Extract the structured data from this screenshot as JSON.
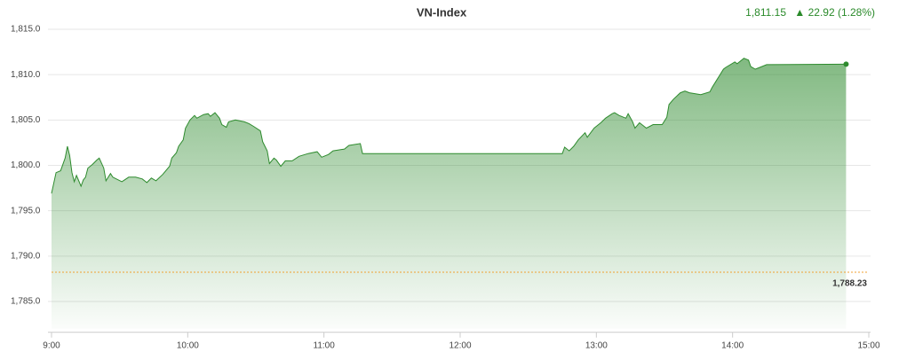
{
  "chart_data": {
    "type": "area",
    "title": "VN-Index",
    "last_value_label": "1,811.15",
    "change_label": "▲ 22.92 (1.28%)",
    "color": "#2e8b2e",
    "header_color": "#2a8a2a",
    "reference": {
      "value": 1788.23,
      "label": "1,788.23",
      "color": "#f0a030"
    },
    "grid": true,
    "xlim": [
      540,
      900
    ],
    "xticks": [
      {
        "value": 540,
        "label": "9:00"
      },
      {
        "value": 600,
        "label": "10:00"
      },
      {
        "value": 660,
        "label": "11:00"
      },
      {
        "value": 720,
        "label": "12:00"
      },
      {
        "value": 780,
        "label": "13:00"
      },
      {
        "value": 840,
        "label": "14:00"
      },
      {
        "value": 900,
        "label": "15:00"
      }
    ],
    "ylim": [
      1782,
      1815
    ],
    "yticks": [
      {
        "value": 1785,
        "label": "1,785.0"
      },
      {
        "value": 1790,
        "label": "1,790.0"
      },
      {
        "value": 1795,
        "label": "1,795.0"
      },
      {
        "value": 1800,
        "label": "1,800.0"
      },
      {
        "value": 1805,
        "label": "1,805.0"
      },
      {
        "value": 1810,
        "label": "1,810.0"
      },
      {
        "value": 1815,
        "label": "1,815.0"
      }
    ],
    "x": [
      540,
      542,
      544,
      546,
      547,
      548,
      549,
      550,
      551,
      553,
      554,
      555,
      556,
      558,
      560,
      561,
      563,
      564,
      566,
      567,
      571,
      574,
      577,
      580,
      582,
      584,
      586,
      589,
      592,
      593,
      595,
      596,
      598,
      599,
      601,
      603,
      604,
      607,
      609,
      610,
      612,
      614,
      615,
      617,
      618,
      621,
      625,
      627,
      629,
      632,
      633,
      635,
      636,
      638,
      639,
      641,
      643,
      646,
      649,
      653,
      657,
      659,
      662,
      664,
      669,
      671,
      676,
      677,
      765,
      766,
      768,
      770,
      772,
      775,
      776,
      779,
      782,
      784,
      787,
      788,
      790,
      793,
      794,
      796,
      797,
      799,
      802,
      805,
      809,
      811,
      812,
      814,
      817,
      819,
      821,
      826,
      830,
      831,
      833,
      834,
      836,
      837,
      841,
      842,
      845,
      847,
      848,
      850,
      852,
      855,
      890
    ],
    "values": [
      1796.9,
      1799.2,
      1799.4,
      1800.8,
      1802.1,
      1801.1,
      1799.2,
      1798.2,
      1798.9,
      1797.7,
      1798.4,
      1798.7,
      1799.7,
      1800.1,
      1800.6,
      1800.8,
      1799.7,
      1798.3,
      1799.1,
      1798.7,
      1798.2,
      1798.7,
      1798.7,
      1798.5,
      1798.1,
      1798.6,
      1798.3,
      1799.0,
      1799.9,
      1800.8,
      1801.4,
      1802.1,
      1802.8,
      1804.1,
      1805.0,
      1805.5,
      1805.2,
      1805.6,
      1805.7,
      1805.4,
      1805.8,
      1805.2,
      1804.5,
      1804.2,
      1804.8,
      1805.0,
      1804.8,
      1804.6,
      1804.3,
      1803.8,
      1802.6,
      1801.6,
      1800.2,
      1800.8,
      1800.6,
      1799.9,
      1800.5,
      1800.5,
      1801.0,
      1801.3,
      1801.5,
      1800.9,
      1801.2,
      1801.6,
      1801.8,
      1802.2,
      1802.4,
      1801.3,
      1801.3,
      1802.0,
      1801.6,
      1802.1,
      1802.8,
      1803.6,
      1803.1,
      1804.1,
      1804.7,
      1805.2,
      1805.7,
      1805.8,
      1805.5,
      1805.2,
      1805.7,
      1804.8,
      1804.1,
      1804.7,
      1804.1,
      1804.5,
      1804.5,
      1805.3,
      1806.7,
      1807.3,
      1808.0,
      1808.2,
      1808.0,
      1807.8,
      1808.1,
      1808.6,
      1809.4,
      1809.8,
      1810.6,
      1810.8,
      1811.4,
      1811.2,
      1811.8,
      1811.6,
      1810.9,
      1810.6,
      1810.8,
      1811.1,
      1811.15
    ]
  }
}
